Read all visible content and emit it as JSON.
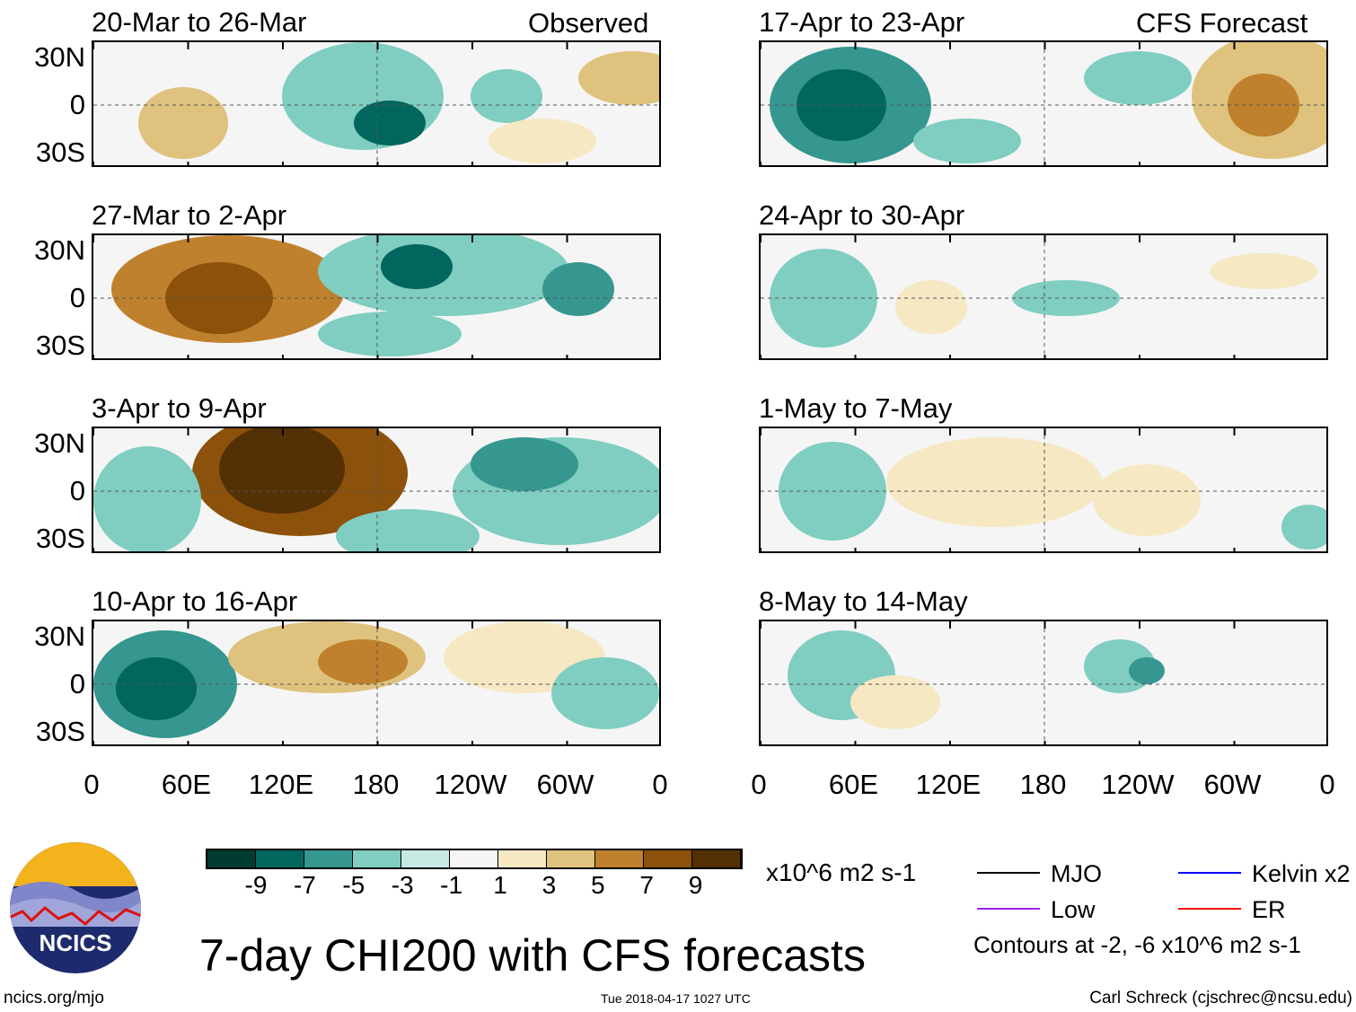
{
  "headers": {
    "left": "Observed",
    "right": "CFS Forecast"
  },
  "panels_left": [
    "20-Mar to 26-Mar",
    "27-Mar to 2-Apr",
    "3-Apr to 9-Apr",
    "10-Apr to 16-Apr"
  ],
  "panels_right": [
    "17-Apr to 23-Apr",
    "24-Apr to 30-Apr",
    "1-May to 7-May",
    "8-May to 14-May"
  ],
  "chart_data": {
    "type": "heatmap",
    "title": "7-day CHI200 with CFS forecasts",
    "ylabels": [
      "30N",
      "0",
      "30S"
    ],
    "xlabels": [
      "0",
      "60E",
      "120E",
      "180",
      "120W",
      "60W",
      "0"
    ],
    "colorbar": {
      "ticks": [
        "-9",
        "-7",
        "-5",
        "-3",
        "-1",
        "1",
        "3",
        "5",
        "7",
        "9"
      ],
      "colors": [
        "#003c30",
        "#01665e",
        "#35978f",
        "#80cdc1",
        "#c7eae5",
        "#f5f5f5",
        "#f6e8c3",
        "#dfc27d",
        "#bf812d",
        "#8c510a",
        "#543005"
      ],
      "units": "x10^6 m2 s-1"
    },
    "legend": [
      {
        "label": "MJO",
        "color": "#000000"
      },
      {
        "label": "Kelvin x2",
        "color": "#0000ff"
      },
      {
        "label": "Low",
        "color": "#a020f0"
      },
      {
        "label": "ER",
        "color": "#ff0000"
      }
    ],
    "contour_note": "Contours at -2, -6 x10^6 m2 s-1"
  },
  "logo": {
    "text": "NCICS"
  },
  "footer": {
    "left": "ncics.org/mjo",
    "center": "Tue 2018-04-17 1027 UTC",
    "right": "Carl Schreck (cjschrec@ncsu.edu)"
  }
}
